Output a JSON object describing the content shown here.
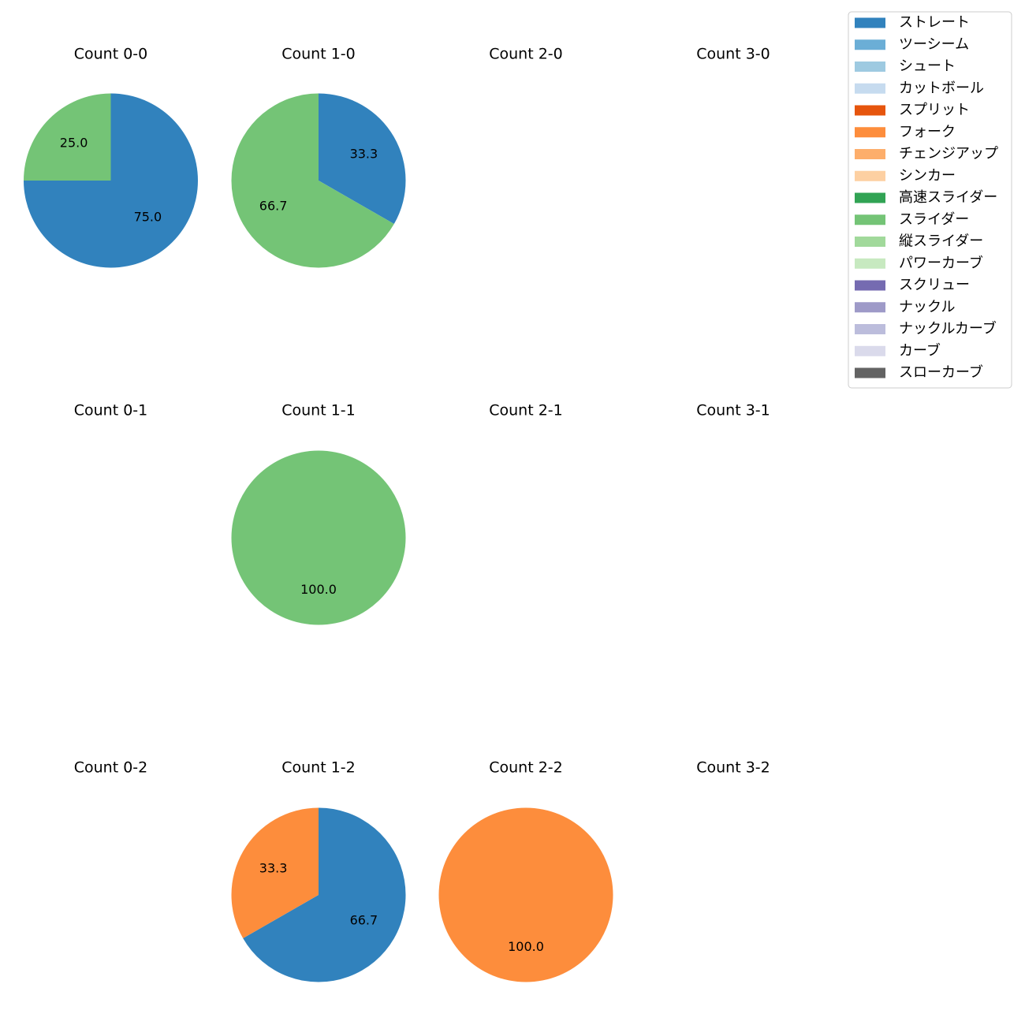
{
  "chart_data": {
    "type": "pie",
    "grid": "4x3 small multiples",
    "legend": {
      "placement": "top-right",
      "entries": [
        {
          "label": "ストレート",
          "color": "#3182bd"
        },
        {
          "label": "ツーシーム",
          "color": "#6baed6"
        },
        {
          "label": "シュート",
          "color": "#9ecae1"
        },
        {
          "label": "カットボール",
          "color": "#c6dbef"
        },
        {
          "label": "スプリット",
          "color": "#e6550d"
        },
        {
          "label": "フォーク",
          "color": "#fd8d3c"
        },
        {
          "label": "チェンジアップ",
          "color": "#fdae6b"
        },
        {
          "label": "シンカー",
          "color": "#fdd0a2"
        },
        {
          "label": "高速スライダー",
          "color": "#31a354"
        },
        {
          "label": "スライダー",
          "color": "#74c476"
        },
        {
          "label": "縦スライダー",
          "color": "#a1d99b"
        },
        {
          "label": "パワーカーブ",
          "color": "#c7e9c0"
        },
        {
          "label": "スクリュー",
          "color": "#756bb1"
        },
        {
          "label": "ナックル",
          "color": "#9e9ac8"
        },
        {
          "label": "ナックルカーブ",
          "color": "#bcbddc"
        },
        {
          "label": "カーブ",
          "color": "#dadaeb"
        },
        {
          "label": "スローカーブ",
          "color": "#636363"
        }
      ]
    },
    "panels": [
      {
        "title": "Count 0-0",
        "slices": [
          {
            "pitch": "ストレート",
            "value": 75.0
          },
          {
            "pitch": "スライダー",
            "value": 25.0
          }
        ]
      },
      {
        "title": "Count 1-0",
        "slices": [
          {
            "pitch": "ストレート",
            "value": 33.3
          },
          {
            "pitch": "スライダー",
            "value": 66.7
          }
        ]
      },
      {
        "title": "Count 2-0",
        "slices": []
      },
      {
        "title": "Count 3-0",
        "slices": []
      },
      {
        "title": "Count 0-1",
        "slices": []
      },
      {
        "title": "Count 1-1",
        "slices": [
          {
            "pitch": "スライダー",
            "value": 100.0
          }
        ]
      },
      {
        "title": "Count 2-1",
        "slices": []
      },
      {
        "title": "Count 3-1",
        "slices": []
      },
      {
        "title": "Count 0-2",
        "slices": []
      },
      {
        "title": "Count 1-2",
        "slices": [
          {
            "pitch": "ストレート",
            "value": 66.7
          },
          {
            "pitch": "フォーク",
            "value": 33.3
          }
        ]
      },
      {
        "title": "Count 2-2",
        "slices": [
          {
            "pitch": "フォーク",
            "value": 100.0
          }
        ]
      },
      {
        "title": "Count 3-2",
        "slices": []
      }
    ]
  }
}
